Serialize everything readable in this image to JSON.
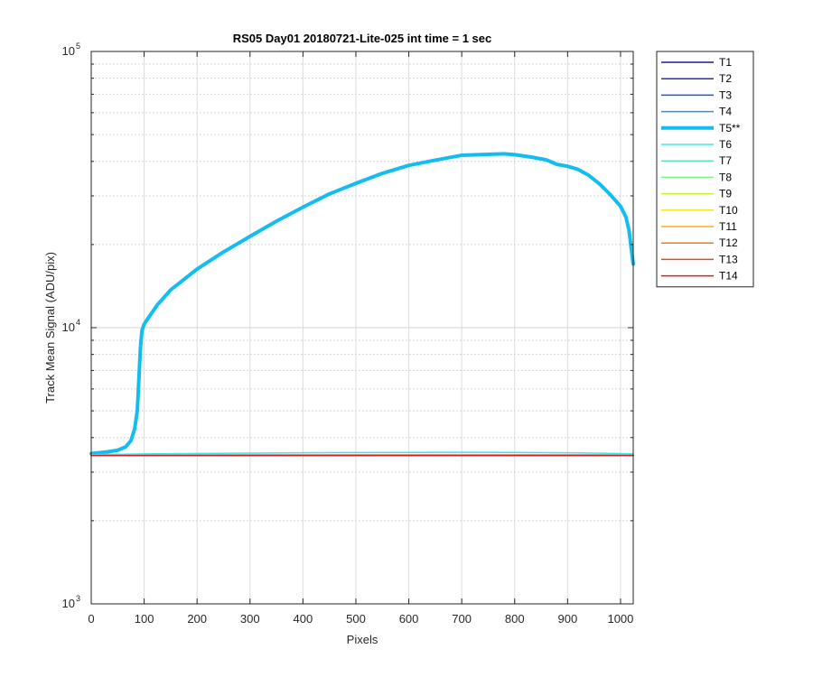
{
  "chart_data": {
    "type": "line",
    "title": "RS05 Day01 20180721-Lite-025 int time = 1 sec",
    "xlabel": "Pixels",
    "ylabel": "Track Mean Signal (ADU/pix)",
    "xlim": [
      0,
      1024
    ],
    "ylim": [
      1000,
      100000
    ],
    "yscale": "log",
    "grid": true,
    "legend_position": "outside-right-top",
    "x_ticks": [
      0,
      100,
      200,
      300,
      400,
      500,
      600,
      700,
      800,
      900,
      1000
    ],
    "x_tick_labels": [
      "0",
      "100",
      "200",
      "300",
      "400",
      "500",
      "600",
      "700",
      "800",
      "900",
      "1000"
    ],
    "y_ticks": [
      1000,
      10000,
      100000
    ],
    "y_tick_labels": [
      {
        "base": "10",
        "exp": "3"
      },
      {
        "base": "10",
        "exp": "4"
      },
      {
        "base": "10",
        "exp": "5"
      }
    ],
    "series": [
      {
        "name": "T1",
        "color": "#1a1a8c",
        "width": 1.5,
        "x": [
          0,
          1024
        ],
        "y": [
          3450,
          3450
        ]
      },
      {
        "name": "T2",
        "color": "#1f2fc8",
        "width": 1.5,
        "x": [
          0,
          1024
        ],
        "y": [
          3450,
          3450
        ]
      },
      {
        "name": "T3",
        "color": "#2255d9",
        "width": 1.5,
        "x": [
          0,
          1024
        ],
        "y": [
          3455,
          3455
        ]
      },
      {
        "name": "T4",
        "color": "#2f8fe0",
        "width": 1.5,
        "x": [
          0,
          1024
        ],
        "y": [
          3460,
          3460
        ]
      },
      {
        "name": "T5**",
        "color": "#14bdf0",
        "width": 4,
        "x": [
          0,
          30,
          50,
          65,
          75,
          82,
          87,
          90,
          93,
          96,
          100,
          110,
          125,
          150,
          200,
          250,
          300,
          350,
          400,
          450,
          500,
          550,
          600,
          650,
          700,
          750,
          780,
          800,
          830,
          860,
          880,
          900,
          920,
          940,
          960,
          980,
          1000,
          1010,
          1016,
          1020,
          1024
        ],
        "y": [
          3500,
          3550,
          3600,
          3700,
          3900,
          4300,
          5000,
          6500,
          8500,
          9800,
          10300,
          11000,
          12100,
          13700,
          16300,
          18800,
          21400,
          24300,
          27300,
          30500,
          33300,
          36200,
          38700,
          40400,
          42100,
          42400,
          42600,
          42300,
          41500,
          40500,
          39000,
          38400,
          37400,
          35600,
          33200,
          30400,
          27500,
          25200,
          22500,
          19500,
          17000
        ]
      },
      {
        "name": "T6",
        "color": "#3ae8e8",
        "width": 1.5,
        "x": [
          0,
          100,
          200,
          300,
          400,
          500,
          600,
          700,
          800,
          900,
          1000,
          1024
        ],
        "y": [
          3470,
          3490,
          3505,
          3515,
          3525,
          3530,
          3535,
          3538,
          3535,
          3525,
          3500,
          3490
        ]
      },
      {
        "name": "T7",
        "color": "#5ee6c4",
        "width": 1.5,
        "x": [
          0,
          1024
        ],
        "y": [
          3465,
          3465
        ]
      },
      {
        "name": "T8",
        "color": "#7fef8a",
        "width": 1.5,
        "x": [
          0,
          1024
        ],
        "y": [
          3460,
          3460
        ]
      },
      {
        "name": "T9",
        "color": "#c2ef3a",
        "width": 1.5,
        "x": [
          0,
          1024
        ],
        "y": [
          3455,
          3455
        ]
      },
      {
        "name": "T10",
        "color": "#f6ea1f",
        "width": 1.5,
        "x": [
          0,
          1024
        ],
        "y": [
          3452,
          3452
        ]
      },
      {
        "name": "T11",
        "color": "#f6b21d",
        "width": 1.5,
        "x": [
          0,
          1024
        ],
        "y": [
          3450,
          3450
        ]
      },
      {
        "name": "T12",
        "color": "#f27a18",
        "width": 1.5,
        "x": [
          0,
          1024
        ],
        "y": [
          3448,
          3448
        ]
      },
      {
        "name": "T13",
        "color": "#e8471a",
        "width": 1.5,
        "x": [
          0,
          1024
        ],
        "y": [
          3446,
          3446
        ]
      },
      {
        "name": "T14",
        "color": "#d61f1f",
        "width": 1.5,
        "x": [
          0,
          1024
        ],
        "y": [
          3444,
          3444
        ]
      }
    ]
  }
}
